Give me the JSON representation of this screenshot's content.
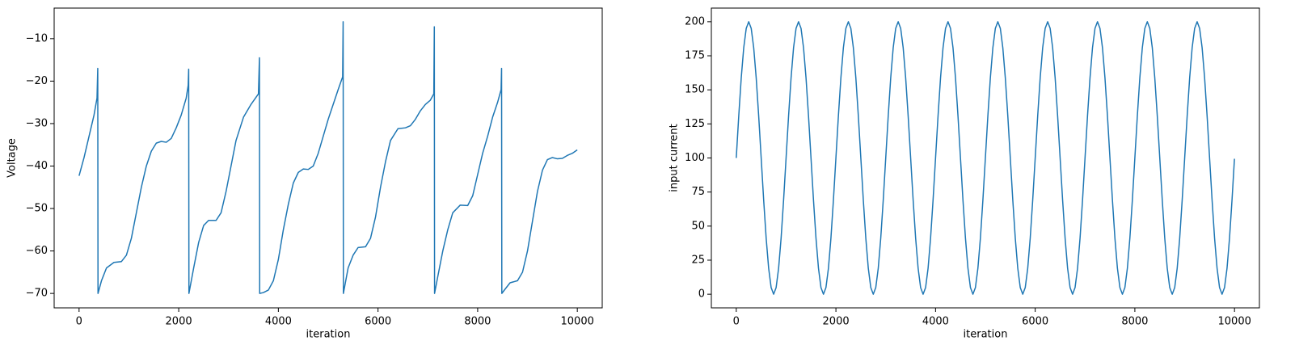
{
  "chart_data": [
    {
      "type": "line",
      "xlabel": "iteration",
      "ylabel": "Voltage",
      "color": "#1f77b4",
      "xlim": [
        -500,
        10500
      ],
      "ylim": [
        -73.4,
        -2.8
      ],
      "xticks": [
        0,
        2000,
        4000,
        6000,
        8000,
        10000
      ],
      "yticks": [
        {
          "value": -70,
          "label": "−70"
        },
        {
          "value": -60,
          "label": "−60"
        },
        {
          "value": -50,
          "label": "−50"
        },
        {
          "value": -40,
          "label": "−40"
        },
        {
          "value": -30,
          "label": "−30"
        },
        {
          "value": -20,
          "label": "−20"
        },
        {
          "value": -10,
          "label": "−10"
        }
      ],
      "x": [
        0,
        100,
        200,
        300,
        360,
        375,
        380,
        450,
        550,
        700,
        850,
        950,
        1050,
        1150,
        1250,
        1350,
        1450,
        1550,
        1650,
        1750,
        1850,
        1950,
        2050,
        2150,
        2190,
        2200,
        2205,
        2300,
        2400,
        2500,
        2600,
        2750,
        2850,
        2950,
        3050,
        3150,
        3300,
        3450,
        3600,
        3620,
        3625,
        3700,
        3800,
        3900,
        4000,
        4100,
        4200,
        4300,
        4400,
        4500,
        4600,
        4700,
        4800,
        4900,
        5000,
        5100,
        5200,
        5290,
        5300,
        5305,
        5400,
        5500,
        5600,
        5750,
        5850,
        5950,
        6050,
        6150,
        6250,
        6400,
        6550,
        6650,
        6750,
        6850,
        6950,
        7050,
        7120,
        7130,
        7135,
        7200,
        7300,
        7400,
        7500,
        7650,
        7800,
        7900,
        8000,
        8100,
        8200,
        8300,
        8400,
        8470,
        8480,
        8485,
        8550,
        8650,
        8800,
        8900,
        9000,
        9100,
        9200,
        9300,
        9400,
        9500,
        9600,
        9700,
        9800,
        9900,
        9999
      ],
      "values": [
        -42.3,
        -38,
        -33,
        -28,
        -24,
        -17,
        -70,
        -67,
        -64,
        -62.7,
        -62.5,
        -61,
        -57,
        -51,
        -45,
        -40,
        -36.5,
        -34.6,
        -34.2,
        -34.4,
        -33.5,
        -31,
        -28,
        -24,
        -21,
        -17.2,
        -70,
        -64,
        -58,
        -54,
        -52.8,
        -52.8,
        -51,
        -46,
        -40,
        -34,
        -28.5,
        -25.5,
        -23,
        -14.5,
        -70,
        -69.8,
        -69.2,
        -67,
        -62,
        -55,
        -49,
        -44,
        -41.5,
        -40.7,
        -40.8,
        -40,
        -37,
        -33,
        -29,
        -25.5,
        -22,
        -19,
        -6,
        -70,
        -64,
        -61,
        -59.2,
        -59,
        -57,
        -52,
        -45,
        -39,
        -34,
        -31.2,
        -31,
        -30.5,
        -29,
        -27,
        -25.5,
        -24.5,
        -23,
        -7.2,
        -70,
        -66,
        -60,
        -55,
        -51,
        -49.2,
        -49.3,
        -47,
        -42,
        -37,
        -33,
        -28.5,
        -25,
        -22,
        -17,
        -70,
        -69,
        -67.5,
        -67,
        -65,
        -60,
        -53,
        -46,
        -41,
        -38.5,
        -38,
        -38.3,
        -38.2,
        -37.5,
        -37,
        -36.2
      ]
    },
    {
      "type": "line",
      "xlabel": "iteration",
      "ylabel": "input current",
      "color": "#1f77b4",
      "xlim": [
        -500,
        10500
      ],
      "ylim": [
        -10,
        210
      ],
      "xticks": [
        0,
        2000,
        4000,
        6000,
        8000,
        10000
      ],
      "yticks": [
        0,
        25,
        50,
        75,
        100,
        125,
        150,
        175,
        200
      ],
      "x": [
        0,
        50,
        100,
        150,
        200,
        250,
        300,
        350,
        400,
        450,
        500,
        550,
        600,
        650,
        700,
        750,
        800,
        850,
        900,
        950,
        1000,
        1050,
        1100,
        1150,
        1200,
        1250,
        1300,
        1350,
        1400,
        1450,
        1500,
        1550,
        1600,
        1650,
        1700,
        1750,
        1800,
        1850,
        1900,
        1950,
        2000,
        2050,
        2100,
        2150,
        2200,
        2250,
        2300,
        2350,
        2400,
        2450,
        2500,
        2550,
        2600,
        2650,
        2700,
        2750,
        2800,
        2850,
        2900,
        2950,
        3000,
        3050,
        3100,
        3150,
        3200,
        3250,
        3300,
        3350,
        3400,
        3450,
        3500,
        3550,
        3600,
        3650,
        3700,
        3750,
        3800,
        3850,
        3900,
        3950,
        4000,
        4050,
        4100,
        4150,
        4200,
        4250,
        4300,
        4350,
        4400,
        4450,
        4500,
        4550,
        4600,
        4650,
        4700,
        4750,
        4800,
        4850,
        4900,
        4950,
        5000,
        5050,
        5100,
        5150,
        5200,
        5250,
        5300,
        5350,
        5400,
        5450,
        5500,
        5550,
        5600,
        5650,
        5700,
        5750,
        5800,
        5850,
        5900,
        5950,
        6000,
        6050,
        6100,
        6150,
        6200,
        6250,
        6300,
        6350,
        6400,
        6450,
        6500,
        6550,
        6600,
        6650,
        6700,
        6750,
        6800,
        6850,
        6900,
        6950,
        7000,
        7050,
        7100,
        7150,
        7200,
        7250,
        7300,
        7350,
        7400,
        7450,
        7500,
        7550,
        7600,
        7650,
        7700,
        7750,
        7800,
        7850,
        7900,
        7950,
        8000,
        8050,
        8100,
        8150,
        8200,
        8250,
        8300,
        8350,
        8400,
        8450,
        8500,
        8550,
        8600,
        8650,
        8700,
        8750,
        8800,
        8850,
        8900,
        8950,
        9000,
        9050,
        9100,
        9150,
        9200,
        9250,
        9300,
        9350,
        9400,
        9450,
        9500,
        9550,
        9600,
        9650,
        9700,
        9750,
        9800,
        9850,
        9900,
        9950,
        9999
      ],
      "values": [
        100,
        130.9,
        158.8,
        180.9,
        195.1,
        200,
        195.1,
        180.9,
        158.8,
        130.9,
        100,
        69.1,
        41.2,
        19.1,
        4.9,
        0,
        4.9,
        19.1,
        41.2,
        69.1,
        100,
        130.9,
        158.8,
        180.9,
        195.1,
        200,
        195.1,
        180.9,
        158.8,
        130.9,
        100,
        69.1,
        41.2,
        19.1,
        4.9,
        0,
        4.9,
        19.1,
        41.2,
        69.1,
        100,
        130.9,
        158.8,
        180.9,
        195.1,
        200,
        195.1,
        180.9,
        158.8,
        130.9,
        100,
        69.1,
        41.2,
        19.1,
        4.9,
        0,
        4.9,
        19.1,
        41.2,
        69.1,
        100,
        130.9,
        158.8,
        180.9,
        195.1,
        200,
        195.1,
        180.9,
        158.8,
        130.9,
        100,
        69.1,
        41.2,
        19.1,
        4.9,
        0,
        4.9,
        19.1,
        41.2,
        69.1,
        100,
        130.9,
        158.8,
        180.9,
        195.1,
        200,
        195.1,
        180.9,
        158.8,
        130.9,
        100,
        69.1,
        41.2,
        19.1,
        4.9,
        0,
        4.9,
        19.1,
        41.2,
        69.1,
        100,
        130.9,
        158.8,
        180.9,
        195.1,
        200,
        195.1,
        180.9,
        158.8,
        130.9,
        100,
        69.1,
        41.2,
        19.1,
        4.9,
        0,
        4.9,
        19.1,
        41.2,
        69.1,
        100,
        130.9,
        158.8,
        180.9,
        195.1,
        200,
        195.1,
        180.9,
        158.8,
        130.9,
        100,
        69.1,
        41.2,
        19.1,
        4.9,
        0,
        4.9,
        19.1,
        41.2,
        69.1,
        100,
        130.9,
        158.8,
        180.9,
        195.1,
        200,
        195.1,
        180.9,
        158.8,
        130.9,
        100,
        69.1,
        41.2,
        19.1,
        4.9,
        0,
        4.9,
        19.1,
        41.2,
        69.1,
        100,
        130.9,
        158.8,
        180.9,
        195.1,
        200,
        195.1,
        180.9,
        158.8,
        130.9,
        100,
        69.1,
        41.2,
        19.1,
        4.9,
        0,
        4.9,
        19.1,
        41.2,
        69.1,
        100,
        130.9,
        158.8,
        180.9,
        195.1,
        200,
        195.1,
        180.9,
        158.8,
        130.9,
        100,
        69.1,
        41.2,
        19.1,
        4.9,
        0,
        4.9,
        19.1,
        41.2,
        69.1,
        99.4
      ]
    }
  ]
}
